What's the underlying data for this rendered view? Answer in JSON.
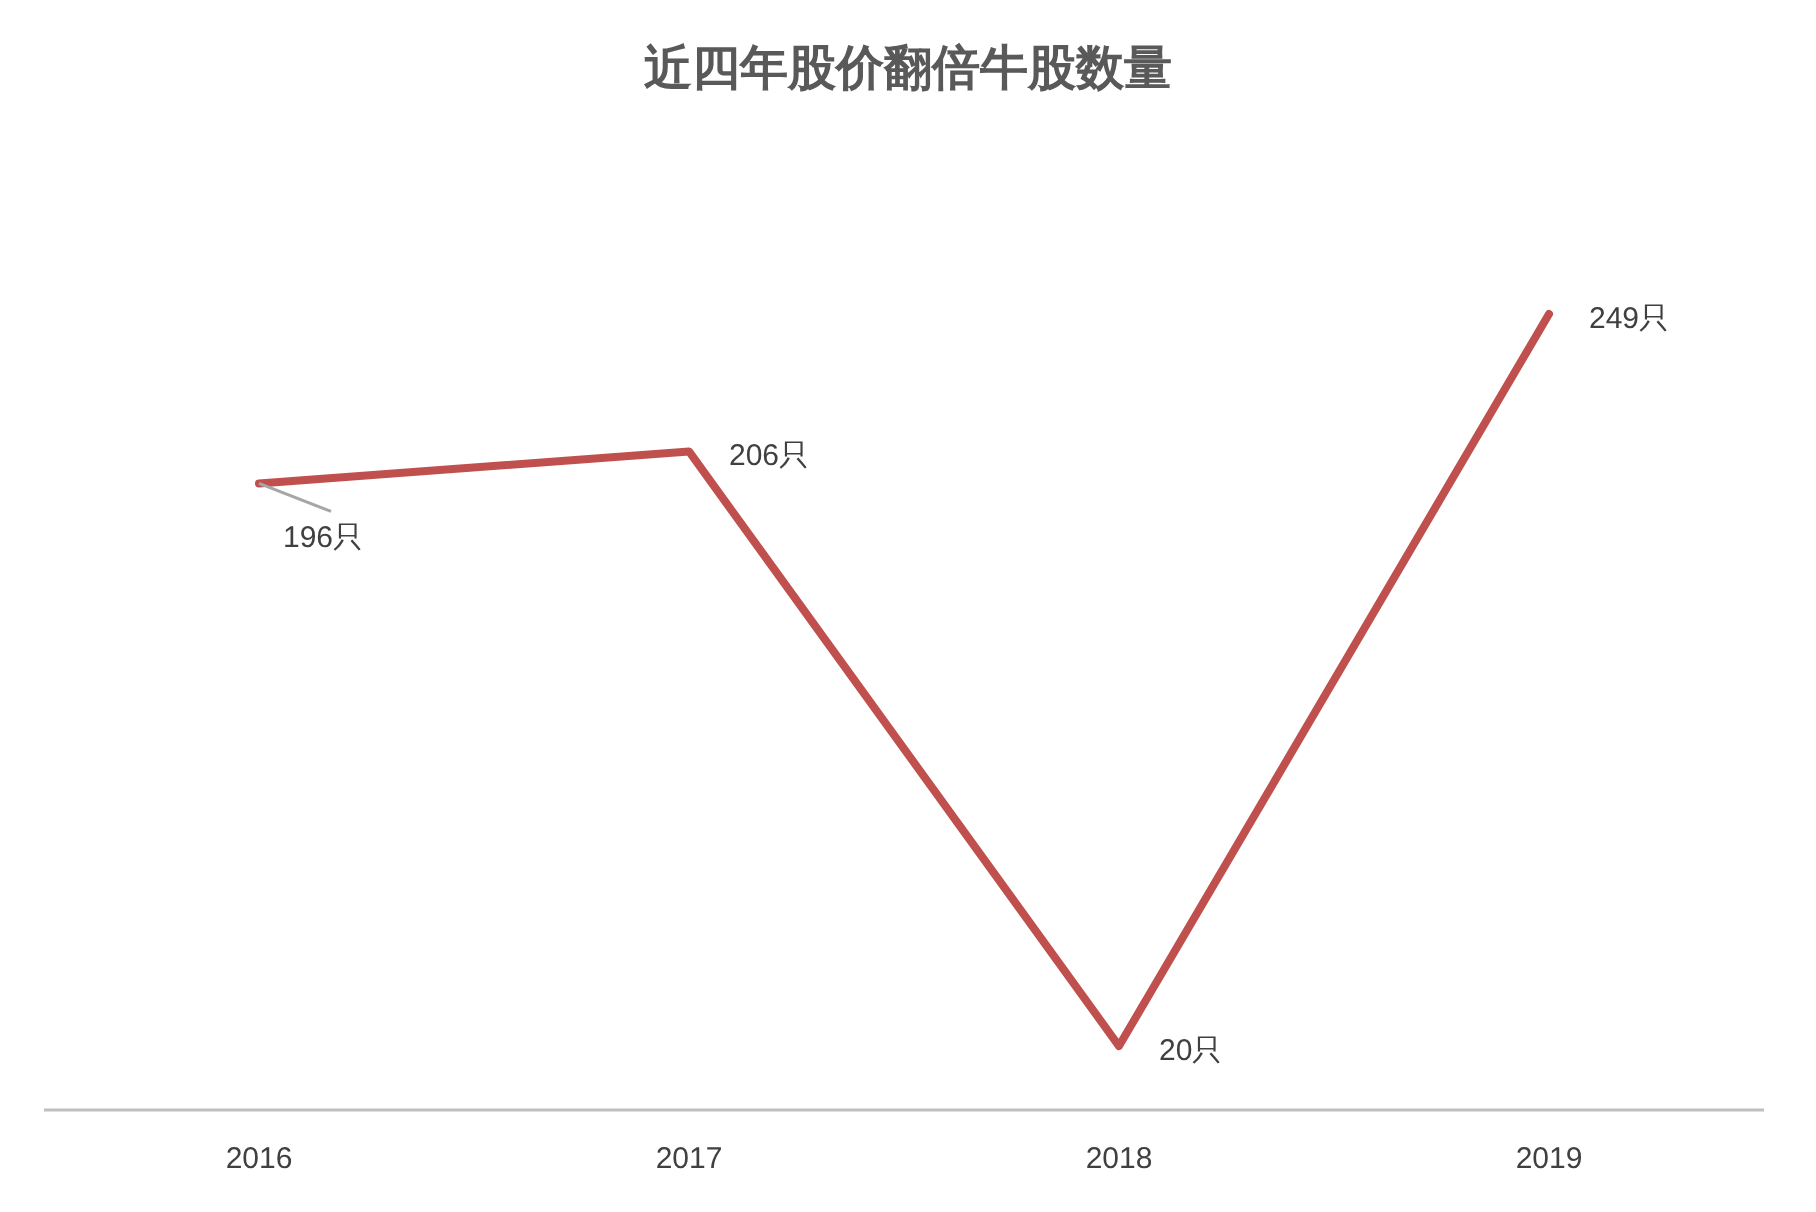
{
  "chart_data": {
    "type": "line",
    "title": "近四年股价翻倍牛股数量",
    "categories": [
      "2016",
      "2017",
      "2018",
      "2019"
    ],
    "series": [
      {
        "color": "#c0504d",
        "values": [
          196,
          206,
          20,
          249
        ],
        "value_labels": [
          "196只",
          "206只",
          "20只",
          "249只"
        ]
      }
    ],
    "marker": "none",
    "line_style": "solid"
  }
}
